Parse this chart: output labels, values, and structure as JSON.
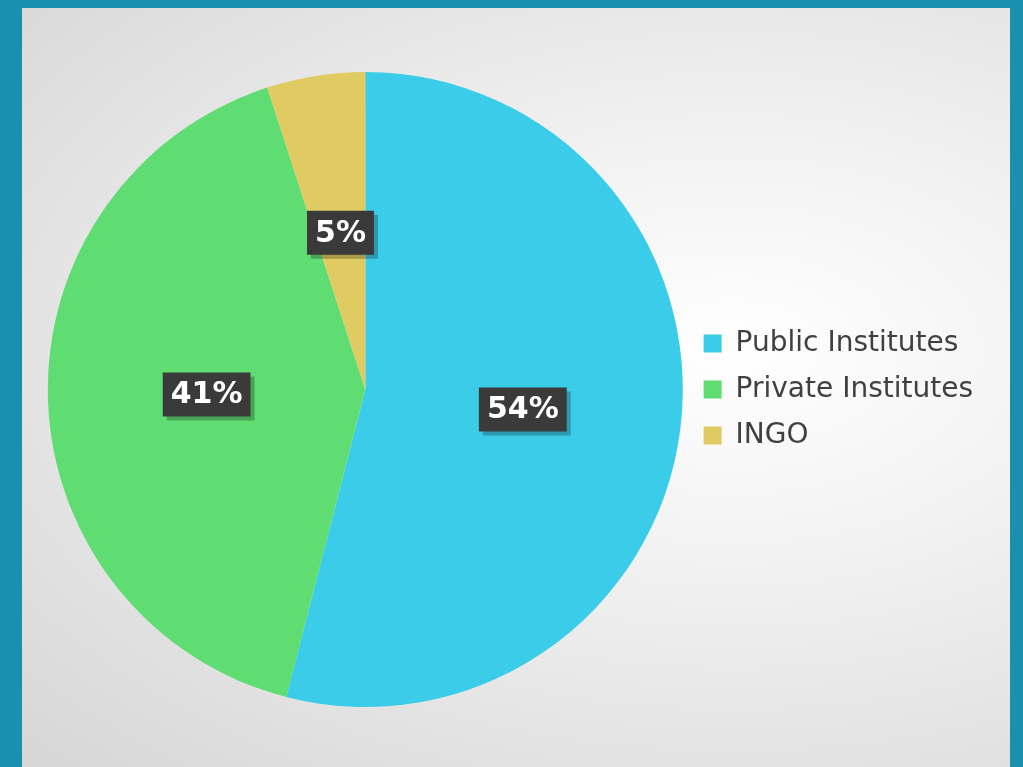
{
  "chart_data": {
    "type": "pie",
    "categories": [
      "Public Institutes",
      "Private Institutes",
      "INGO"
    ],
    "values": [
      54,
      41,
      5
    ],
    "colors": [
      "#3acce8",
      "#5fdd72",
      "#e0cb62"
    ],
    "value_labels": [
      "54%",
      "41%",
      "5%"
    ],
    "legend": "right"
  }
}
